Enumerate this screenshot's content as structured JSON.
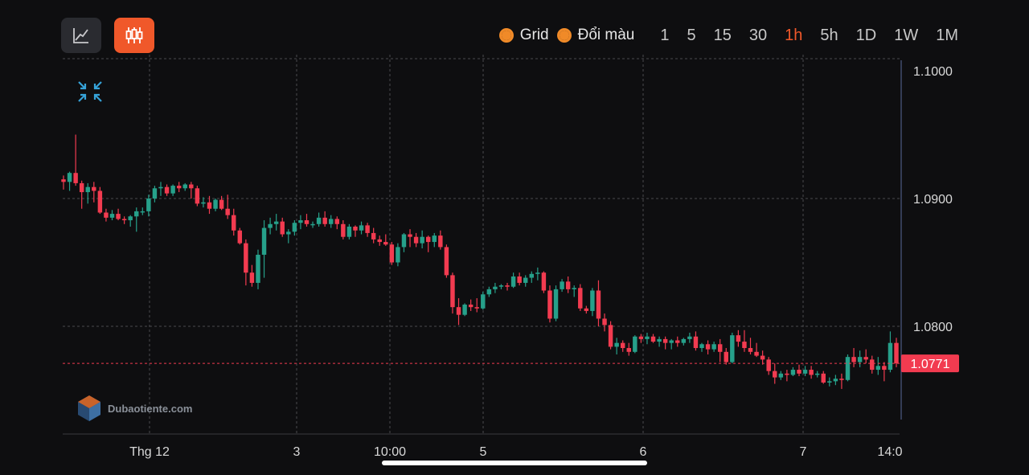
{
  "toolbar": {
    "toggles": [
      {
        "label": "Grid",
        "checked": true
      },
      {
        "label": "Đổi màu",
        "checked": true
      }
    ],
    "intervals": [
      "1",
      "5",
      "15",
      "30",
      "1h",
      "5h",
      "1D",
      "1W",
      "1M"
    ],
    "active_interval": "1h",
    "chart_types": [
      {
        "icon": "line-chart-icon",
        "active": false
      },
      {
        "icon": "candlestick-chart-icon",
        "active": true
      }
    ]
  },
  "colors": {
    "background": "#0e0e10",
    "up": "#26a08a",
    "down": "#f23b50",
    "accent": "#f0582a",
    "price_label_bg": "#f23b50",
    "grid": "#4a4a4e"
  },
  "watermark": {
    "text": "Dubaotiente.com"
  },
  "chart_data": {
    "type": "candlestick",
    "interval": "1h",
    "grid": true,
    "ylim": [
      1.0745,
      1.101
    ],
    "y_ticks": [
      "1.1000",
      "1.0900",
      "1.0800"
    ],
    "x_ticks": [
      "Thg 12",
      "3",
      "10:00",
      "5",
      "6",
      "7",
      "14:0"
    ],
    "last_price": "1.0771",
    "last_price_value": 1.0771,
    "ohlc": [
      [
        1.0915,
        1.0918,
        1.0907,
        1.0913
      ],
      [
        1.0913,
        1.0921,
        1.0906,
        1.092
      ],
      [
        1.092,
        1.095,
        1.091,
        1.0912
      ],
      [
        1.0912,
        1.0914,
        1.0892,
        1.0905
      ],
      [
        1.0905,
        1.0912,
        1.0896,
        1.0909
      ],
      [
        1.0909,
        1.0913,
        1.0897,
        1.0906
      ],
      [
        1.0906,
        1.0909,
        1.0888,
        1.0889
      ],
      [
        1.0889,
        1.0892,
        1.0882,
        1.0885
      ],
      [
        1.0885,
        1.0891,
        1.0883,
        1.0888
      ],
      [
        1.0888,
        1.0892,
        1.0883,
        1.0884
      ],
      [
        1.0884,
        1.0886,
        1.088,
        1.0883
      ],
      [
        1.0883,
        1.0887,
        1.0878,
        1.0886
      ],
      [
        1.0886,
        1.0893,
        1.0874,
        1.089
      ],
      [
        1.089,
        1.0893,
        1.0887,
        1.089
      ],
      [
        1.089,
        1.0903,
        1.0886,
        1.09
      ],
      [
        1.09,
        1.091,
        1.0897,
        1.0908
      ],
      [
        1.0908,
        1.0913,
        1.0902,
        1.0909
      ],
      [
        1.0909,
        1.0911,
        1.0902,
        1.0904
      ],
      [
        1.0904,
        1.0911,
        1.0902,
        1.091
      ],
      [
        1.091,
        1.0913,
        1.0905,
        1.0908
      ],
      [
        1.0908,
        1.0912,
        1.0906,
        1.0911
      ],
      [
        1.0911,
        1.0913,
        1.09,
        1.0908
      ],
      [
        1.0908,
        1.091,
        1.0894,
        1.0896
      ],
      [
        1.0896,
        1.0901,
        1.0893,
        1.0897
      ],
      [
        1.0897,
        1.0902,
        1.0888,
        1.0892
      ],
      [
        1.0892,
        1.09,
        1.089,
        1.0899
      ],
      [
        1.0899,
        1.0902,
        1.0891,
        1.0892
      ],
      [
        1.0892,
        1.0903,
        1.0884,
        1.0887
      ],
      [
        1.0887,
        1.0892,
        1.0871,
        1.0875
      ],
      [
        1.0875,
        1.0877,
        1.0864,
        1.0865
      ],
      [
        1.0865,
        1.0868,
        1.0832,
        1.0842
      ],
      [
        1.0842,
        1.0848,
        1.0831,
        1.0834
      ],
      [
        1.0834,
        1.086,
        1.0829,
        1.0856
      ],
      [
        1.0856,
        1.0883,
        1.0838,
        1.0877
      ],
      [
        1.0877,
        1.0885,
        1.0872,
        1.088
      ],
      [
        1.088,
        1.0888,
        1.0875,
        1.0882
      ],
      [
        1.0882,
        1.0885,
        1.087,
        1.0872
      ],
      [
        1.0872,
        1.0876,
        1.0865,
        1.0874
      ],
      [
        1.0874,
        1.0883,
        1.0871,
        1.0881
      ],
      [
        1.0881,
        1.0887,
        1.0876,
        1.0883
      ],
      [
        1.0883,
        1.0888,
        1.0878,
        1.088
      ],
      [
        1.088,
        1.0882,
        1.0877,
        1.088
      ],
      [
        1.088,
        1.0889,
        1.0878,
        1.0885
      ],
      [
        1.0885,
        1.089,
        1.0878,
        1.088
      ],
      [
        1.088,
        1.0887,
        1.0877,
        1.0884
      ],
      [
        1.0884,
        1.0886,
        1.0876,
        1.088
      ],
      [
        1.088,
        1.0883,
        1.0868,
        1.087
      ],
      [
        1.087,
        1.088,
        1.0868,
        1.0878
      ],
      [
        1.0878,
        1.0879,
        1.087,
        1.0875
      ],
      [
        1.0875,
        1.0882,
        1.0872,
        1.0879
      ],
      [
        1.0879,
        1.0881,
        1.087,
        1.0873
      ],
      [
        1.0873,
        1.0877,
        1.0865,
        1.0868
      ],
      [
        1.0868,
        1.0871,
        1.0863,
        1.0866
      ],
      [
        1.0866,
        1.0872,
        1.0863,
        1.0864
      ],
      [
        1.0864,
        1.0866,
        1.0848,
        1.085
      ],
      [
        1.085,
        1.0865,
        1.0847,
        1.0862
      ],
      [
        1.0862,
        1.0873,
        1.0858,
        1.0872
      ],
      [
        1.0872,
        1.0876,
        1.0862,
        1.087
      ],
      [
        1.087,
        1.0873,
        1.0862,
        1.0865
      ],
      [
        1.0865,
        1.0875,
        1.0861,
        1.087
      ],
      [
        1.087,
        1.0871,
        1.0858,
        1.0866
      ],
      [
        1.0866,
        1.0873,
        1.0862,
        1.0871
      ],
      [
        1.0871,
        1.0875,
        1.086,
        1.0862
      ],
      [
        1.0862,
        1.0864,
        1.0838,
        1.084
      ],
      [
        1.084,
        1.0842,
        1.081,
        1.0815
      ],
      [
        1.0815,
        1.0822,
        1.0801,
        1.0809
      ],
      [
        1.0809,
        1.0818,
        1.0808,
        1.0817
      ],
      [
        1.0817,
        1.0821,
        1.0812,
        1.0815
      ],
      [
        1.0815,
        1.0822,
        1.0811,
        1.0814
      ],
      [
        1.0814,
        1.0827,
        1.0813,
        1.0825
      ],
      [
        1.0825,
        1.0831,
        1.0823,
        1.0829
      ],
      [
        1.0829,
        1.0834,
        1.0826,
        1.0831
      ],
      [
        1.0831,
        1.0833,
        1.0829,
        1.0832
      ],
      [
        1.0832,
        1.0834,
        1.0828,
        1.0831
      ],
      [
        1.0831,
        1.0842,
        1.083,
        1.0839
      ],
      [
        1.0839,
        1.0842,
        1.0832,
        1.0834
      ],
      [
        1.0834,
        1.084,
        1.0831,
        1.0838
      ],
      [
        1.0838,
        1.0843,
        1.0834,
        1.0841
      ],
      [
        1.0841,
        1.0846,
        1.0836,
        1.0842
      ],
      [
        1.0842,
        1.0843,
        1.0826,
        1.0828
      ],
      [
        1.0828,
        1.0832,
        1.0803,
        1.0806
      ],
      [
        1.0806,
        1.0832,
        1.0804,
        1.0829
      ],
      [
        1.0829,
        1.0837,
        1.0827,
        1.0835
      ],
      [
        1.0835,
        1.0839,
        1.0826,
        1.0829
      ],
      [
        1.0829,
        1.0832,
        1.0823,
        1.083
      ],
      [
        1.083,
        1.0833,
        1.0812,
        1.0814
      ],
      [
        1.0814,
        1.0816,
        1.081,
        1.0812
      ],
      [
        1.0812,
        1.083,
        1.0808,
        1.0828
      ],
      [
        1.0828,
        1.0836,
        1.08,
        1.0806
      ],
      [
        1.0806,
        1.081,
        1.0796,
        1.0801
      ],
      [
        1.0801,
        1.0804,
        1.0782,
        1.0784
      ],
      [
        1.0784,
        1.0791,
        1.0778,
        1.0787
      ],
      [
        1.0787,
        1.0789,
        1.078,
        1.0783
      ],
      [
        1.0783,
        1.0787,
        1.0777,
        1.078
      ],
      [
        1.078,
        1.0793,
        1.0779,
        1.0792
      ],
      [
        1.0792,
        1.0794,
        1.0787,
        1.079
      ],
      [
        1.079,
        1.0795,
        1.0786,
        1.0792
      ],
      [
        1.0792,
        1.0794,
        1.0787,
        1.0788
      ],
      [
        1.0788,
        1.0792,
        1.0784,
        1.079
      ],
      [
        1.079,
        1.0792,
        1.0782,
        1.0787
      ],
      [
        1.0787,
        1.079,
        1.0782,
        1.0789
      ],
      [
        1.0789,
        1.0792,
        1.0784,
        1.0787
      ],
      [
        1.0787,
        1.0791,
        1.0785,
        1.079
      ],
      [
        1.079,
        1.0795,
        1.0787,
        1.0792
      ],
      [
        1.0792,
        1.0796,
        1.0781,
        1.0783
      ],
      [
        1.0783,
        1.0787,
        1.078,
        1.0786
      ],
      [
        1.0786,
        1.0789,
        1.0778,
        1.0782
      ],
      [
        1.0782,
        1.0788,
        1.078,
        1.0786
      ],
      [
        1.0786,
        1.079,
        1.0772,
        1.078
      ],
      [
        1.078,
        1.0783,
        1.077,
        1.0772
      ],
      [
        1.0772,
        1.0795,
        1.0771,
        1.0793
      ],
      [
        1.0793,
        1.0797,
        1.0784,
        1.0788
      ],
      [
        1.0788,
        1.0797,
        1.078,
        1.0783
      ],
      [
        1.0783,
        1.0791,
        1.0778,
        1.078
      ],
      [
        1.078,
        1.0787,
        1.0776,
        1.0777
      ],
      [
        1.0777,
        1.0781,
        1.077,
        1.0774
      ],
      [
        1.0774,
        1.0776,
        1.0762,
        1.0765
      ],
      [
        1.0765,
        1.0771,
        1.0755,
        1.076
      ],
      [
        1.076,
        1.0765,
        1.0758,
        1.0763
      ],
      [
        1.0763,
        1.0766,
        1.0757,
        1.0762
      ],
      [
        1.0762,
        1.0768,
        1.0761,
        1.0766
      ],
      [
        1.0766,
        1.077,
        1.0761,
        1.0763
      ],
      [
        1.0763,
        1.0769,
        1.0761,
        1.0766
      ],
      [
        1.0766,
        1.0769,
        1.0759,
        1.0762
      ],
      [
        1.0762,
        1.0765,
        1.076,
        1.0763
      ],
      [
        1.0763,
        1.0765,
        1.0755,
        1.0756
      ],
      [
        1.0756,
        1.076,
        1.0753,
        1.0757
      ],
      [
        1.0757,
        1.0762,
        1.0754,
        1.0759
      ],
      [
        1.0759,
        1.0763,
        1.0751,
        1.0758
      ],
      [
        1.0758,
        1.0778,
        1.0757,
        1.0776
      ],
      [
        1.0776,
        1.0783,
        1.0768,
        1.0772
      ],
      [
        1.0772,
        1.0781,
        1.0768,
        1.0776
      ],
      [
        1.0776,
        1.0782,
        1.0771,
        1.0774
      ],
      [
        1.0774,
        1.0777,
        1.0763,
        1.0766
      ],
      [
        1.0766,
        1.0776,
        1.0762,
        1.0769
      ],
      [
        1.0769,
        1.0772,
        1.0757,
        1.0766
      ],
      [
        1.0766,
        1.0796,
        1.0764,
        1.0787
      ],
      [
        1.0787,
        1.0791,
        1.0768,
        1.0771
      ]
    ]
  }
}
